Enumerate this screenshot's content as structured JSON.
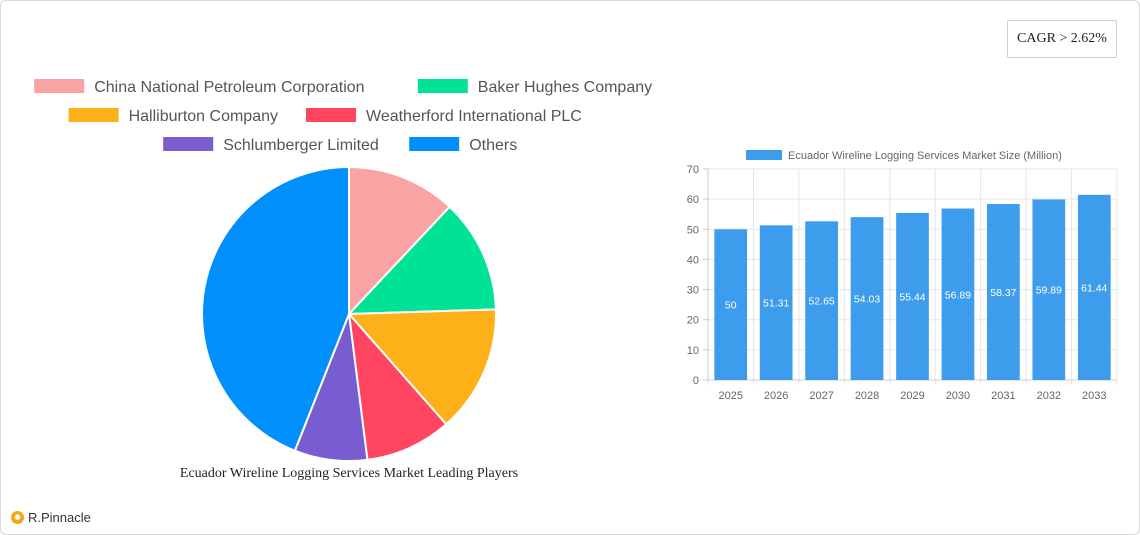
{
  "cagr_label": "CAGR > 2.62%",
  "brand": {
    "name": "R.Pinnacle",
    "icon": "pinnacle-logo-icon"
  },
  "chart_data": [
    {
      "type": "pie",
      "title": "Ecuador Wireline Logging Services Market Leading Players",
      "legend_position": "top",
      "categories": [
        "China National Petroleum Corporation",
        "Baker Hughes Company",
        "Halliburton Company",
        "Weatherford International PLC",
        "Schlumberger Limited",
        "Others"
      ],
      "values": [
        12,
        12.5,
        14,
        9.5,
        8,
        44
      ],
      "colors": [
        "#f9a3a4",
        "#00e396",
        "#feb019",
        "#ff4560",
        "#775dd0",
        "#008ffb"
      ]
    },
    {
      "type": "bar",
      "legend_label": "Ecuador Wireline Logging Services Market Size (Million)",
      "legend_position": "top",
      "categories": [
        "2025",
        "2026",
        "2027",
        "2028",
        "2029",
        "2030",
        "2031",
        "2032",
        "2033"
      ],
      "values": [
        50,
        51.31,
        52.65,
        54.03,
        55.44,
        56.89,
        58.37,
        59.89,
        61.44
      ],
      "data_labels": [
        "50",
        "51.31",
        "52.65",
        "54.03",
        "55.44",
        "56.89",
        "58.37",
        "59.89",
        "61.44"
      ],
      "ylim": [
        0,
        70
      ],
      "yticks": [
        "0",
        "10",
        "20",
        "30",
        "40",
        "50",
        "60",
        "70"
      ],
      "grid": true,
      "color": "#3d9ceb"
    }
  ]
}
